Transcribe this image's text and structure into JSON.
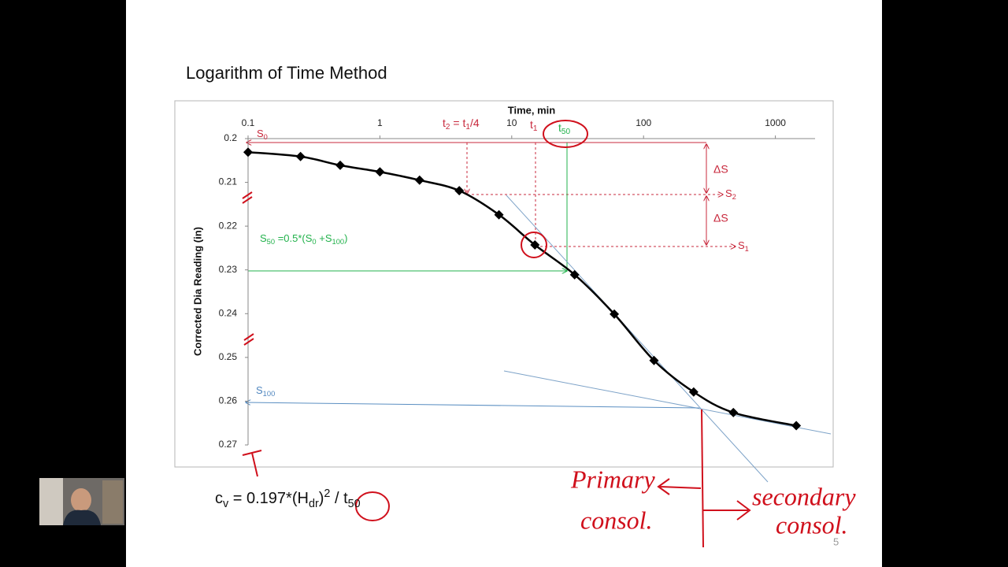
{
  "chart_data": {
    "type": "line",
    "title": "Logarithm of Time Method",
    "x_label": "Time, min",
    "y_label": "Corrected Dia Reading (in)",
    "x_log": true,
    "y_reversed": true,
    "x_axis_position": "top",
    "xlim": [
      0.1,
      2000
    ],
    "xticks": [
      0.1,
      1,
      10,
      100,
      1000
    ],
    "ylim": [
      0.2,
      0.27
    ],
    "yticks": [
      0.2,
      0.21,
      0.22,
      0.23,
      0.24,
      0.25,
      0.26,
      0.27
    ],
    "series": [
      {
        "color": "#000000",
        "x": [
          0.1,
          0.25,
          0.5,
          1,
          2,
          4,
          8,
          15,
          30,
          60,
          120,
          240,
          480,
          1440
        ],
        "values": [
          0.2031,
          0.2041,
          0.2061,
          0.2076,
          0.2095,
          0.2119,
          0.2174,
          0.2243,
          0.2311,
          0.2401,
          0.2507,
          0.2579,
          0.2626,
          0.2656
        ]
      }
    ],
    "annotations": {
      "s0": [
        {
          "t": "S"
        },
        {
          "t": "0",
          "sub": true
        }
      ],
      "t2": [
        {
          "t": "t"
        },
        {
          "t": "2",
          "sub": true
        },
        {
          "t": " = t"
        },
        {
          "t": "1",
          "sub": true
        },
        {
          "t": "/4"
        }
      ],
      "t1": [
        {
          "t": "t"
        },
        {
          "t": "1",
          "sub": true
        }
      ],
      "t50": [
        {
          "t": "t"
        },
        {
          "t": "50",
          "sub": true
        }
      ],
      "s50": [
        {
          "t": "S"
        },
        {
          "t": "50",
          "sub": true
        },
        {
          "t": " =0.5*(S"
        },
        {
          "t": "0",
          "sub": true
        },
        {
          "t": " +S"
        },
        {
          "t": "100",
          "sub": true
        },
        {
          "t": ")"
        }
      ],
      "s100": [
        {
          "t": "S"
        },
        {
          "t": "100",
          "sub": true
        }
      ],
      "delta_s_upper": "ΔS",
      "delta_s_lower": "ΔS",
      "s2": [
        {
          "t": "S"
        },
        {
          "t": "2",
          "sub": true
        }
      ],
      "s1": [
        {
          "t": "S"
        },
        {
          "t": "1",
          "sub": true
        }
      ]
    },
    "handwritten": {
      "primary": [
        "Primary",
        "consol."
      ],
      "secondary": [
        "secondary",
        "consol."
      ]
    },
    "formula": [
      {
        "t": "c"
      },
      {
        "t": "v",
        "sub": true
      },
      {
        "t": " = 0.197*(H"
      },
      {
        "t": "dr",
        "sub": true
      },
      {
        "t": ")"
      },
      {
        "t": "2",
        "sup": true
      },
      {
        "t": " / t"
      },
      {
        "t": "50",
        "sub": true
      }
    ],
    "page_number": "5"
  }
}
